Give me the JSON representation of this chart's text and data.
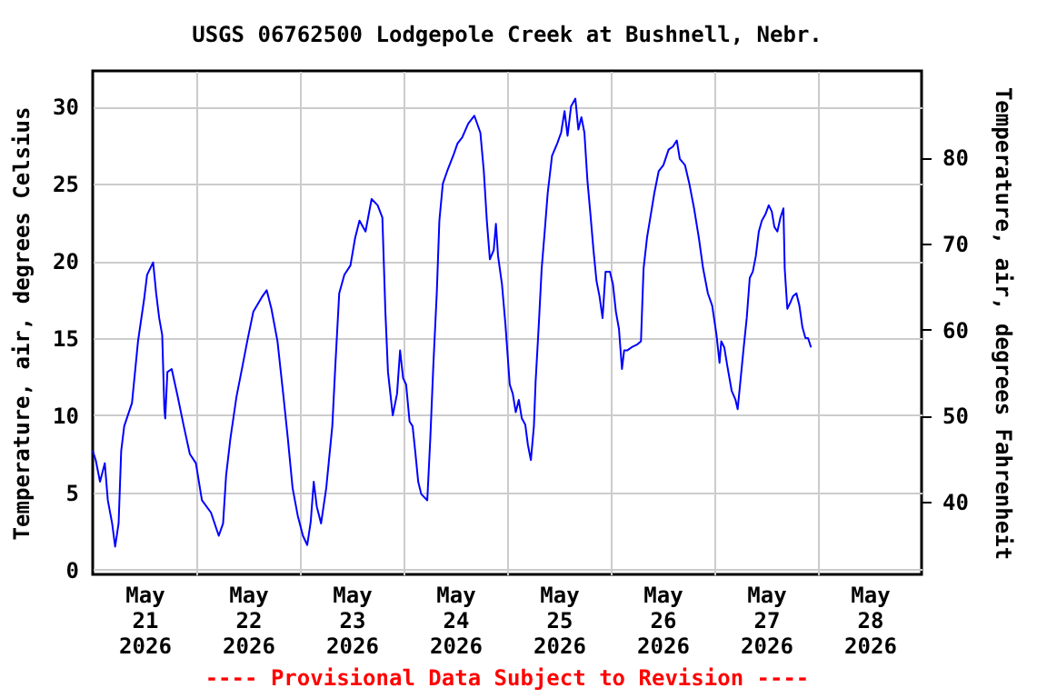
{
  "chart_data": {
    "type": "line",
    "title": "USGS 06762500 Lodgepole Creek at Bushnell, Nebr.",
    "ylabel": "Temperature, air, degrees Celsius",
    "y2label": "Temperature, air, degrees Fahrenheit",
    "annotations": [
      "---- Provisional Data Subject to Revision ----"
    ],
    "x": [
      "2026-05-21T00:00",
      "2026-05-21T00:42",
      "2026-05-21T01:42",
      "2026-05-21T02:48",
      "2026-05-21T03:30",
      "2026-05-21T04:30",
      "2026-05-21T05:12",
      "2026-05-21T06:00",
      "2026-05-21T06:36",
      "2026-05-21T07:18",
      "2026-05-21T09:06",
      "2026-05-21T10:30",
      "2026-05-21T11:54",
      "2026-05-21T12:36",
      "2026-05-21T14:00",
      "2026-05-21T14:42",
      "2026-05-21T15:24",
      "2026-05-21T16:06",
      "2026-05-21T16:36",
      "2026-05-21T16:48",
      "2026-05-21T17:18",
      "2026-05-21T18:18",
      "2026-05-21T19:42",
      "2026-05-21T21:06",
      "2026-05-21T22:30",
      "2026-05-21T23:54",
      "2026-05-22T01:18",
      "2026-05-22T03:24",
      "2026-05-22T05:12",
      "2026-05-22T06:12",
      "2026-05-22T06:54",
      "2026-05-22T07:54",
      "2026-05-22T09:18",
      "2026-05-22T10:42",
      "2026-05-22T11:48",
      "2026-05-22T13:12",
      "2026-05-22T15:18",
      "2026-05-22T16:18",
      "2026-05-22T17:24",
      "2026-05-22T18:48",
      "2026-05-22T20:12",
      "2026-05-22T21:12",
      "2026-05-22T22:18",
      "2026-05-22T23:30",
      "2026-05-23T00:42",
      "2026-05-23T01:42",
      "2026-05-23T02:30",
      "2026-05-23T03:12",
      "2026-05-23T03:54",
      "2026-05-23T04:54",
      "2026-05-23T06:06",
      "2026-05-23T07:30",
      "2026-05-23T08:12",
      "2026-05-23T09:06",
      "2026-05-23T10:18",
      "2026-05-23T11:42",
      "2026-05-23T12:48",
      "2026-05-23T13:48",
      "2026-05-23T15:12",
      "2026-05-23T16:36",
      "2026-05-23T18:00",
      "2026-05-23T19:06",
      "2026-05-23T19:48",
      "2026-05-23T20:24",
      "2026-05-23T21:30",
      "2026-05-23T22:30",
      "2026-05-23T23:12",
      "2026-05-23T23:54",
      "2026-05-24T00:36",
      "2026-05-24T01:24",
      "2026-05-24T02:06",
      "2026-05-24T02:42",
      "2026-05-24T03:24",
      "2026-05-24T04:06",
      "2026-05-24T05:30",
      "2026-05-24T06:12",
      "2026-05-24T06:54",
      "2026-05-24T07:42",
      "2026-05-24T08:18",
      "2026-05-24T09:06",
      "2026-05-24T10:06",
      "2026-05-24T11:30",
      "2026-05-24T12:30",
      "2026-05-24T13:36",
      "2026-05-24T15:00",
      "2026-05-24T16:24",
      "2026-05-24T17:48",
      "2026-05-24T18:36",
      "2026-05-24T19:18",
      "2026-05-24T20:00",
      "2026-05-24T20:54",
      "2026-05-24T21:24",
      "2026-05-24T21:54",
      "2026-05-24T22:48",
      "2026-05-24T23:36",
      "2026-05-25T00:36",
      "2026-05-25T01:18",
      "2026-05-25T02:00",
      "2026-05-25T02:42",
      "2026-05-25T03:24",
      "2026-05-25T04:12",
      "2026-05-25T04:48",
      "2026-05-25T05:30",
      "2026-05-25T06:12",
      "2026-05-25T06:36",
      "2026-05-25T07:18",
      "2026-05-25T08:00",
      "2026-05-25T08:42",
      "2026-05-25T09:24",
      "2026-05-25T10:24",
      "2026-05-25T11:36",
      "2026-05-25T12:30",
      "2026-05-25T13:18",
      "2026-05-25T14:00",
      "2026-05-25T14:48",
      "2026-05-25T15:48",
      "2026-05-25T16:30",
      "2026-05-25T17:12",
      "2026-05-25T17:54",
      "2026-05-25T18:36",
      "2026-05-25T19:18",
      "2026-05-25T20:00",
      "2026-05-25T20:42",
      "2026-05-25T21:24",
      "2026-05-25T22:06",
      "2026-05-25T22:48",
      "2026-05-25T23:48",
      "2026-05-26T00:30",
      "2026-05-26T01:12",
      "2026-05-26T01:54",
      "2026-05-26T02:36",
      "2026-05-26T03:06",
      "2026-05-26T03:48",
      "2026-05-26T04:48",
      "2026-05-26T06:12",
      "2026-05-26T07:00",
      "2026-05-26T07:36",
      "2026-05-26T08:24",
      "2026-05-26T09:24",
      "2026-05-26T10:06",
      "2026-05-26T11:06",
      "2026-05-26T12:12",
      "2026-05-26T13:24",
      "2026-05-26T14:24",
      "2026-05-26T15:18",
      "2026-05-26T16:00",
      "2026-05-26T17:12",
      "2026-05-26T18:12",
      "2026-05-26T19:18",
      "2026-05-26T20:24",
      "2026-05-26T21:24",
      "2026-05-26T22:30",
      "2026-05-26T23:30",
      "2026-05-27T00:30",
      "2026-05-27T01:12",
      "2026-05-27T01:36",
      "2026-05-27T02:18",
      "2026-05-27T03:00",
      "2026-05-27T04:00",
      "2026-05-27T04:54",
      "2026-05-27T05:24",
      "2026-05-27T06:06",
      "2026-05-27T06:48",
      "2026-05-27T07:30",
      "2026-05-27T08:12",
      "2026-05-27T08:54",
      "2026-05-27T09:36",
      "2026-05-27T10:18",
      "2026-05-27T11:00",
      "2026-05-27T11:48",
      "2026-05-27T12:36",
      "2026-05-27T13:18",
      "2026-05-27T13:54",
      "2026-05-27T14:36",
      "2026-05-27T15:18",
      "2026-05-27T16:00",
      "2026-05-27T16:18",
      "2026-05-27T16:54",
      "2026-05-27T17:36",
      "2026-05-27T18:12",
      "2026-05-27T19:00",
      "2026-05-27T19:42",
      "2026-05-27T20:24",
      "2026-05-27T21:06",
      "2026-05-27T21:42",
      "2026-05-27T22:24"
    ],
    "series": [
      {
        "color": "#0000ff",
        "values": [
          7.7,
          7.1,
          5.7,
          6.9,
          4.5,
          3.0,
          1.5,
          3.0,
          7.7,
          9.3,
          10.8,
          14.8,
          17.5,
          19.1,
          19.9,
          17.9,
          16.3,
          15.2,
          10.4,
          9.8,
          12.8,
          13.0,
          11.2,
          9.3,
          7.5,
          6.9,
          4.5,
          3.7,
          2.2,
          3.0,
          6.1,
          8.5,
          11.2,
          13.2,
          14.8,
          16.7,
          17.7,
          18.1,
          16.9,
          14.8,
          11.2,
          8.5,
          5.3,
          3.5,
          2.2,
          1.6,
          3.1,
          5.7,
          4.1,
          3.0,
          5.3,
          9.3,
          13.2,
          17.9,
          19.1,
          19.7,
          21.5,
          22.6,
          21.9,
          24.0,
          23.6,
          22.8,
          16.7,
          12.8,
          10.0,
          11.4,
          14.2,
          12.4,
          12.0,
          9.6,
          9.3,
          7.7,
          5.7,
          4.9,
          4.5,
          8.5,
          13.2,
          17.9,
          22.6,
          25.0,
          25.8,
          26.8,
          27.6,
          28.0,
          28.9,
          29.4,
          28.3,
          25.8,
          22.6,
          20.1,
          20.7,
          22.4,
          20.3,
          18.5,
          15.9,
          12.0,
          11.4,
          10.2,
          11.0,
          9.8,
          9.4,
          8.1,
          7.1,
          9.3,
          12.2,
          15.7,
          19.5,
          21.9,
          24.4,
          26.8,
          27.6,
          28.3,
          29.7,
          28.1,
          30.0,
          30.5,
          28.5,
          29.3,
          28.3,
          25.2,
          23.0,
          20.7,
          18.7,
          17.7,
          16.3,
          19.3,
          19.3,
          18.5,
          16.7,
          15.6,
          13.0,
          14.2,
          14.2,
          14.4,
          14.6,
          14.8,
          19.5,
          21.5,
          23.2,
          24.4,
          25.8,
          26.2,
          27.2,
          27.4,
          27.8,
          26.6,
          26.2,
          25.0,
          23.4,
          21.5,
          19.5,
          17.9,
          17.1,
          15.2,
          13.4,
          14.8,
          14.4,
          13.2,
          11.6,
          11.0,
          10.4,
          12.4,
          14.4,
          16.3,
          18.9,
          19.3,
          20.3,
          21.9,
          22.6,
          23.0,
          23.6,
          23.2,
          22.2,
          21.9,
          22.8,
          23.4,
          19.5,
          16.9,
          17.3,
          17.7,
          17.9,
          17.1,
          15.7,
          15.0,
          15.0,
          14.4
        ]
      }
    ],
    "xlim": [
      "2026-05-21T00:00",
      "2026-05-29T00:00"
    ],
    "xticks": [
      {
        "value": "2026-05-21T12:00",
        "label": "May 21 2026"
      },
      {
        "value": "2026-05-22T00:00",
        "label": null
      },
      {
        "value": "2026-05-22T12:00",
        "label": "May 22 2026"
      },
      {
        "value": "2026-05-23T00:00",
        "label": null
      },
      {
        "value": "2026-05-23T12:00",
        "label": "May 23 2026"
      },
      {
        "value": "2026-05-24T00:00",
        "label": null
      },
      {
        "value": "2026-05-24T12:00",
        "label": "May 24 2026"
      },
      {
        "value": "2026-05-25T00:00",
        "label": null
      },
      {
        "value": "2026-05-25T12:00",
        "label": "May 25 2026"
      },
      {
        "value": "2026-05-26T00:00",
        "label": null
      },
      {
        "value": "2026-05-26T12:00",
        "label": "May 26 2026"
      },
      {
        "value": "2026-05-27T00:00",
        "label": null
      },
      {
        "value": "2026-05-27T12:00",
        "label": "May 27 2026"
      },
      {
        "value": "2026-05-28T00:00",
        "label": null
      },
      {
        "value": "2026-05-28T12:00",
        "label": "May 28 2026"
      }
    ],
    "ylim": [
      -0.3,
      32.3
    ],
    "yticks": [
      0,
      5,
      10,
      15,
      20,
      25,
      30
    ],
    "y2lim": [
      31.5,
      90.1
    ],
    "y2ticks": [
      40,
      50,
      60,
      70,
      80
    ],
    "grid": true,
    "line_style": "solid",
    "marker": "none"
  }
}
